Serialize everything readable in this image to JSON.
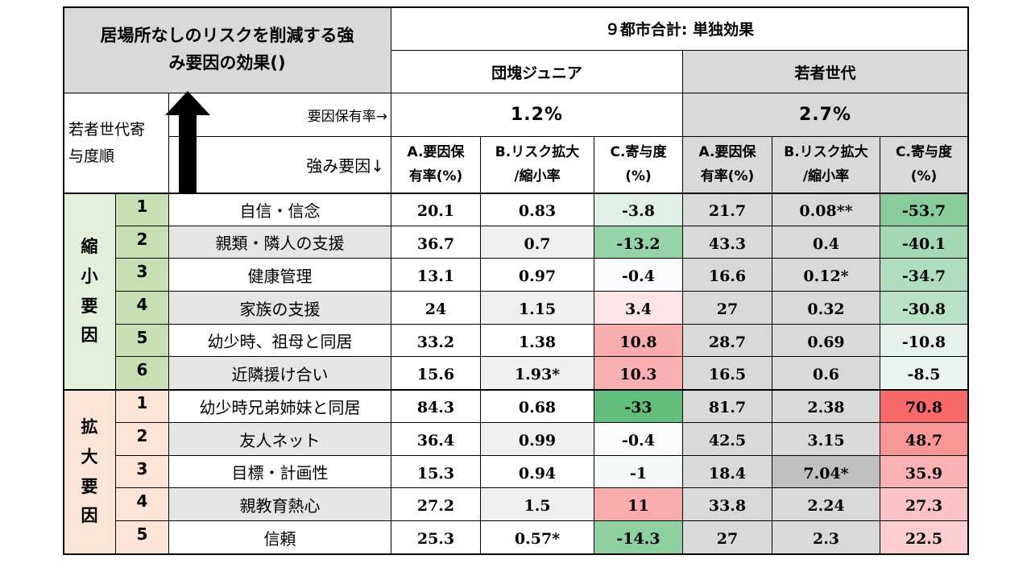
{
  "title_line1": "居場所なしのリスクを削減する強",
  "title_line2": "み要因の効果()",
  "scope": "９都市合計: 単独効果",
  "groups": [
    {
      "name": "団塊ジュニア",
      "rate": "1.2%"
    },
    {
      "name": "若者世代",
      "rate": "2.7%"
    }
  ],
  "sort_label": "若者世代寄\n与度順",
  "rate_label": "要因保有率→",
  "factor_label": "強み要因↓",
  "col_headers": [
    "A.要因保\n有率(%)",
    "B.リスク拡大\n/縮小率",
    "C.寄与度\n(%)"
  ],
  "sections": [
    {
      "label": "縮\n小\n要\n因",
      "rows": [
        {
          "rank": "1",
          "factor": "自信・信念",
          "v": [
            "20.1",
            "0.83",
            "-3.8",
            "21.7",
            "0.08**",
            "-53.7"
          ]
        },
        {
          "rank": "2",
          "factor": "親類・隣人の支援",
          "v": [
            "36.7",
            "0.7",
            "-13.2",
            "43.3",
            "0.4",
            "-40.1"
          ]
        },
        {
          "rank": "3",
          "factor": "健康管理",
          "v": [
            "13.1",
            "0.97",
            "-0.4",
            "16.6",
            "0.12*",
            "-34.7"
          ]
        },
        {
          "rank": "4",
          "factor": "家族の支援",
          "v": [
            "24",
            "1.15",
            "3.4",
            "27",
            "0.32",
            "-30.8"
          ]
        },
        {
          "rank": "5",
          "factor": "幼少時、祖母と同居",
          "v": [
            "33.2",
            "1.38",
            "10.8",
            "28.7",
            "0.69",
            "-10.8"
          ]
        },
        {
          "rank": "6",
          "factor": "近隣援け合い",
          "v": [
            "15.6",
            "1.93*",
            "10.3",
            "16.5",
            "0.6",
            "-8.5"
          ]
        }
      ]
    },
    {
      "label": "拡\n大\n要\n因",
      "rows": [
        {
          "rank": "1",
          "factor": "幼少時兄弟姉妹と同居",
          "v": [
            "84.3",
            "0.68",
            "-33",
            "81.7",
            "2.38",
            "70.8"
          ]
        },
        {
          "rank": "2",
          "factor": "友人ネット",
          "v": [
            "36.4",
            "0.99",
            "-0.4",
            "42.5",
            "3.15",
            "48.7"
          ]
        },
        {
          "rank": "3",
          "factor": "目標・計画性",
          "v": [
            "15.3",
            "0.94",
            "-1",
            "18.4",
            "7.04*",
            "35.9"
          ]
        },
        {
          "rank": "4",
          "factor": "親教育熱心",
          "v": [
            "27.2",
            "1.5",
            "11",
            "33.8",
            "2.24",
            "27.3"
          ]
        },
        {
          "rank": "5",
          "factor": "信頼",
          "v": [
            "25.3",
            "0.57*",
            "-14.3",
            "27",
            "2.3",
            "22.5"
          ]
        }
      ]
    }
  ],
  "colors": {
    "header_gray": "#d9d9d9",
    "shrink_group": "#e2efda",
    "shrink_rank": "#c6e0b4",
    "expand_group": "#fbe5d6",
    "expand_rank": "#fce4d6",
    "red_strong": "#f8696b",
    "green_strong": "#63be7b"
  }
}
